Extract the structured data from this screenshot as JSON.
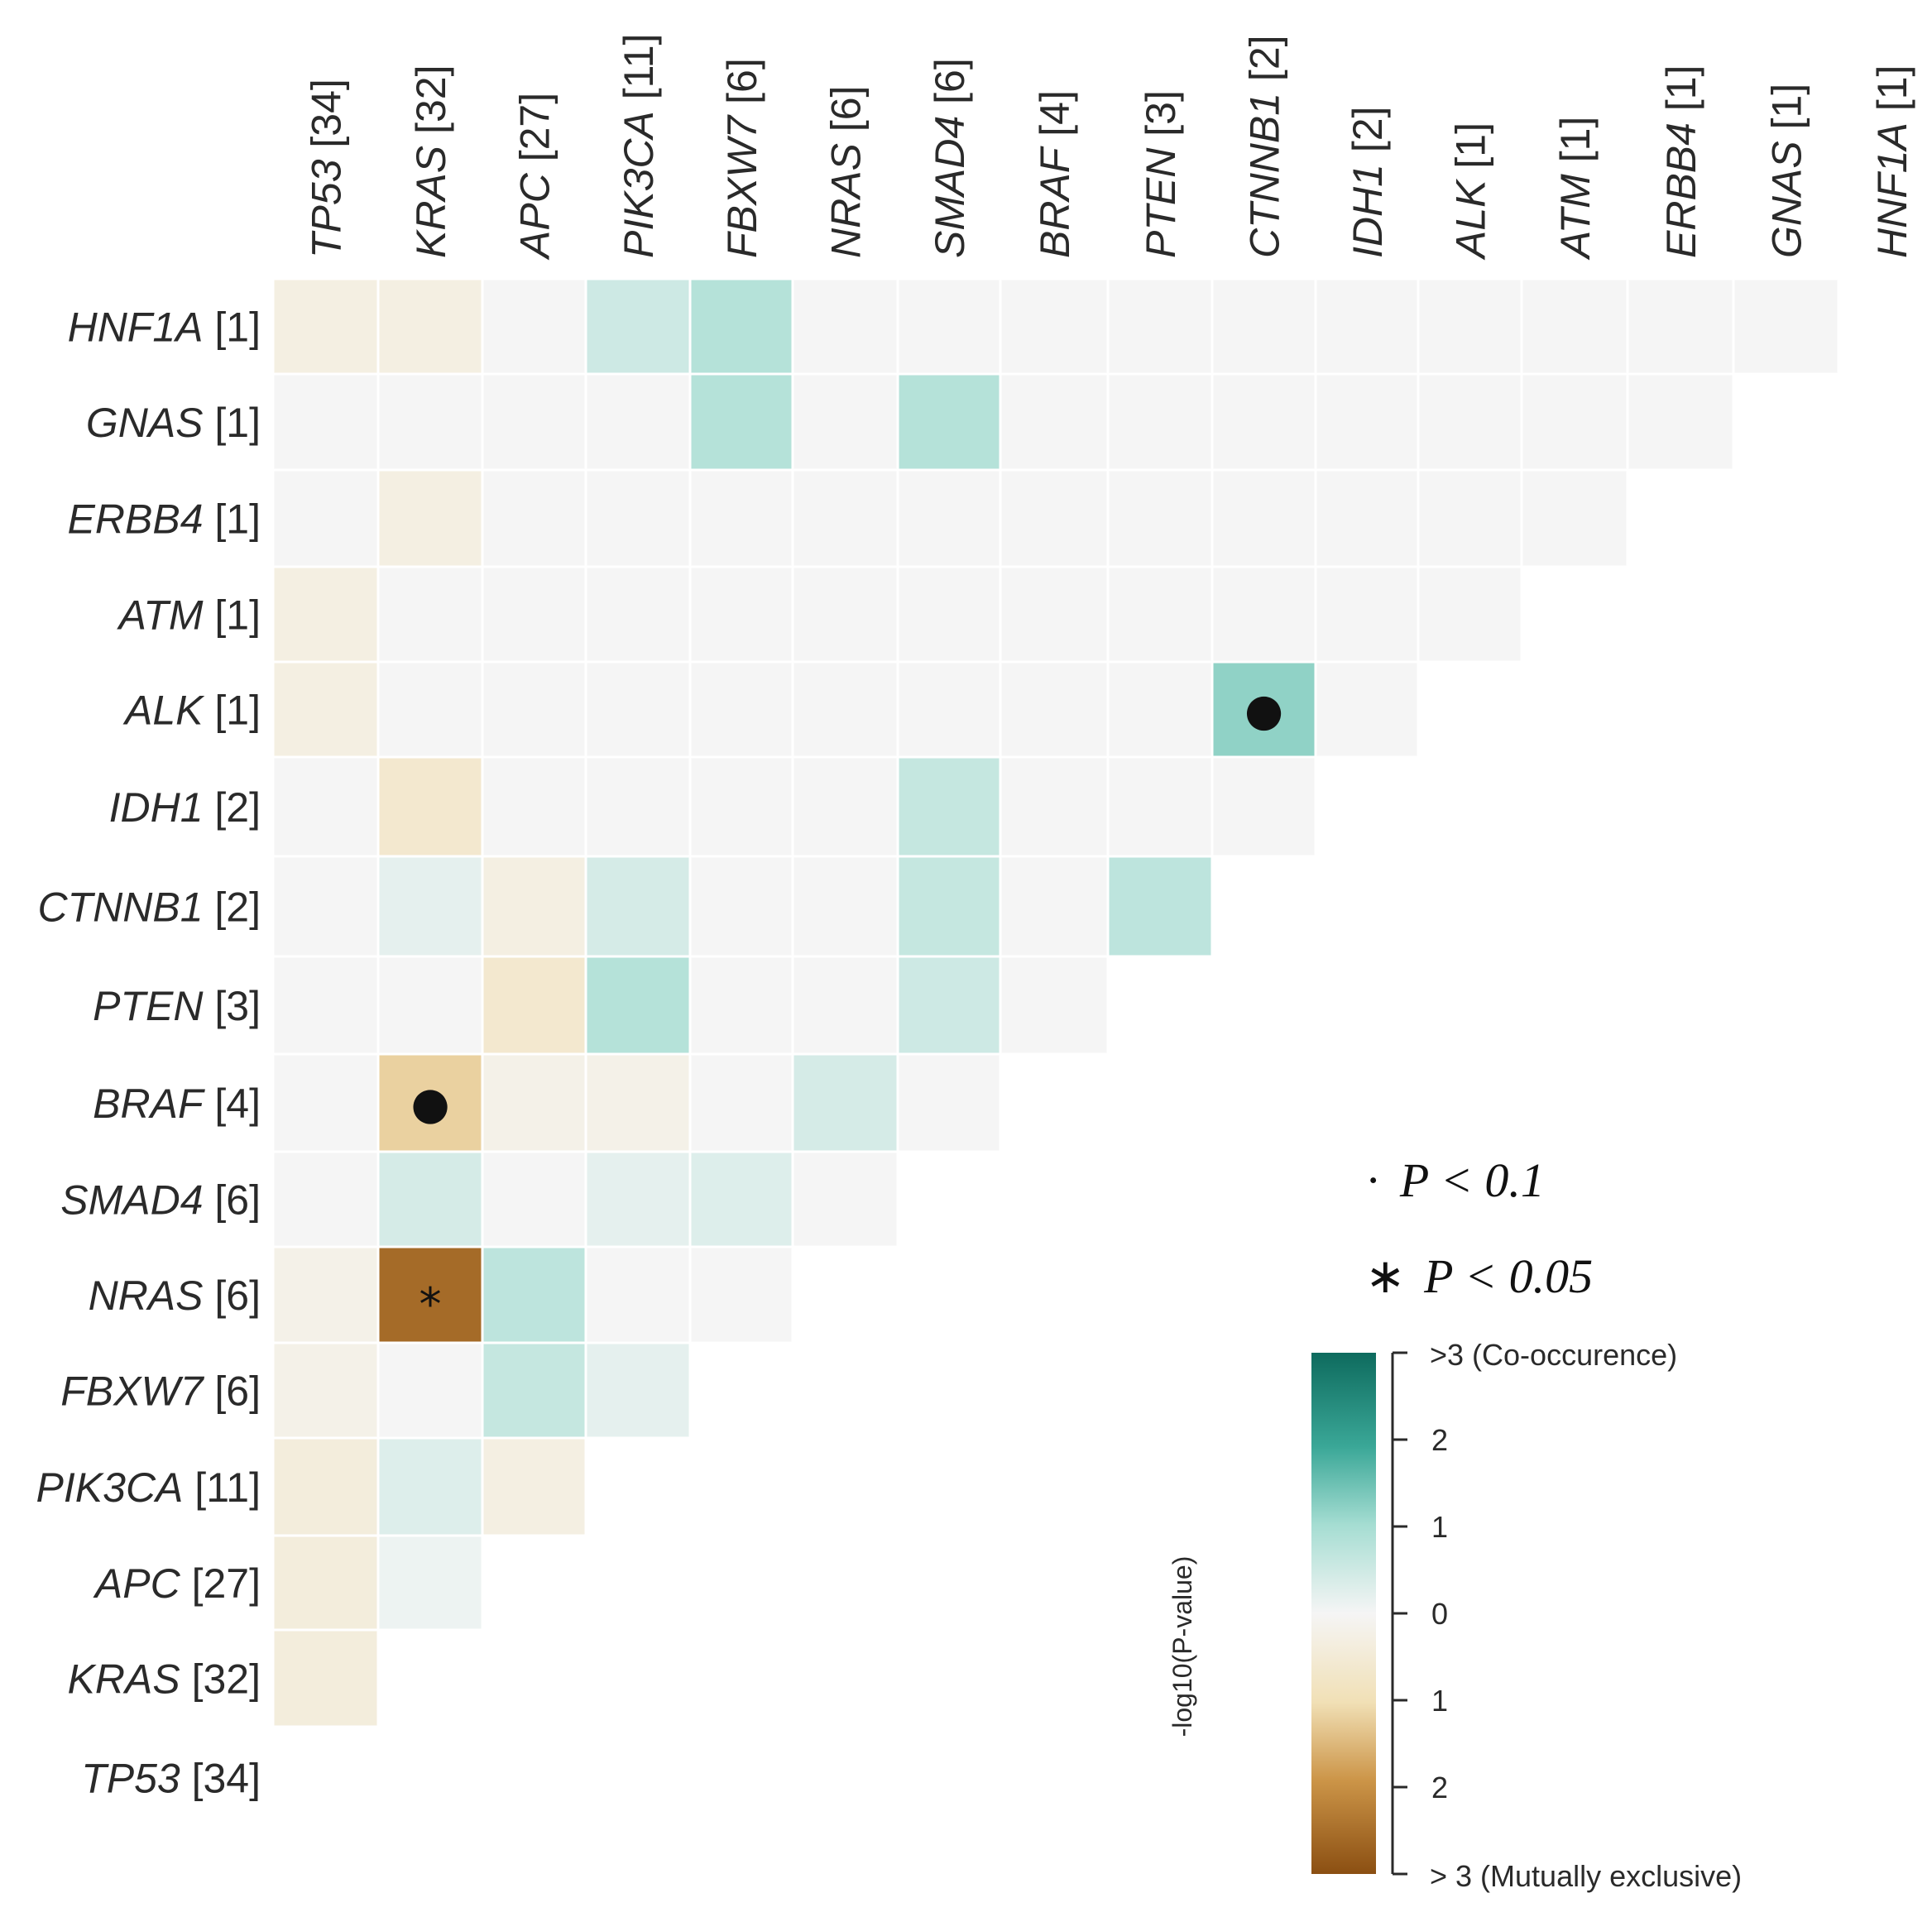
{
  "chart_data": {
    "type": "heatmap",
    "title": "",
    "genes": [
      "TP53",
      "KRAS",
      "APC",
      "PIK3CA",
      "FBXW7",
      "NRAS",
      "SMAD4",
      "BRAF",
      "PTEN",
      "CTNNB1",
      "IDH1",
      "ALK",
      "ATM",
      "ERBB4",
      "GNAS",
      "HNF1A"
    ],
    "counts": [
      34,
      32,
      27,
      11,
      6,
      6,
      6,
      4,
      3,
      2,
      2,
      1,
      1,
      1,
      1,
      1
    ],
    "columns": [
      "TP53 [34]",
      "KRAS [32]",
      "APC [27]",
      "PIK3CA [11]",
      "FBXW7 [6]",
      "NRAS [6]",
      "SMAD4 [6]",
      "BRAF [4]",
      "PTEN [3]",
      "CTNNB1 [2]",
      "IDH1 [2]",
      "ALK [1]",
      "ATM [1]",
      "ERBB4 [1]",
      "GNAS [1]",
      "HNF1A [1]"
    ],
    "rows": [
      "HNF1A [1]",
      "GNAS [1]",
      "ERBB4 [1]",
      "ATM [1]",
      "ALK [1]",
      "IDH1 [2]",
      "CTNNB1 [2]",
      "PTEN [3]",
      "BRAF [4]",
      "SMAD4 [6]",
      "NRAS [6]",
      "FBXW7 [6]",
      "PIK3CA [11]",
      "APC [27]",
      "KRAS [32]",
      "TP53 [34]"
    ],
    "value_meaning": "signed -log10(P-value): positive = co-occurrence, negative = mutual exclusivity",
    "values": [
      [
        -0.3,
        -0.3,
        0,
        0.5,
        0.8,
        0,
        0,
        0,
        0,
        0,
        0,
        0,
        0,
        0,
        0
      ],
      [
        0,
        0,
        0,
        0,
        0.8,
        0,
        0.8,
        0,
        0,
        0,
        0,
        0,
        0,
        0
      ],
      [
        0,
        -0.3,
        0,
        0,
        0,
        0,
        0,
        0,
        0,
        0,
        0,
        0,
        0
      ],
      [
        -0.3,
        0,
        0,
        0,
        0,
        0,
        0,
        0,
        0,
        0,
        0,
        0
      ],
      [
        -0.3,
        0,
        0,
        0,
        0,
        0,
        0,
        0,
        0,
        1.2,
        0
      ],
      [
        0,
        -0.6,
        0,
        0,
        0,
        0,
        0.6,
        0,
        0,
        0
      ],
      [
        0,
        0.2,
        -0.3,
        0.4,
        0,
        0,
        0.6,
        0,
        0.7
      ],
      [
        0,
        0,
        -0.6,
        0.8,
        0,
        0,
        0.5,
        0
      ],
      [
        0,
        -1.2,
        -0.2,
        -0.2,
        0,
        0.4,
        0
      ],
      [
        0,
        0.4,
        0,
        0.2,
        0.3,
        0
      ],
      [
        -0.2,
        -2.6,
        0.7,
        0,
        0
      ],
      [
        -0.2,
        0,
        0.6,
        0.2
      ],
      [
        -0.4,
        0.3,
        -0.3
      ],
      [
        -0.4,
        0.1
      ],
      [
        -0.4
      ]
    ],
    "marks": [
      {
        "row": "ALK [1]",
        "col": "CTNNB1 [2]",
        "symbol": "●",
        "meaning": "P < 0.1"
      },
      {
        "row": "BRAF [4]",
        "col": "KRAS [32]",
        "symbol": "●",
        "meaning": "P < 0.1"
      },
      {
        "row": "NRAS [6]",
        "col": "KRAS [32]",
        "symbol": "*",
        "meaning": "P < 0.05"
      }
    ],
    "significance_legend": [
      {
        "symbol": "·",
        "label": "P < 0.1"
      },
      {
        "symbol": "∗",
        "label": "P < 0.05"
      }
    ],
    "colorbar": {
      "title": "-log10(P-value)",
      "top_label": ">3 (Co-occurence)",
      "bottom_label": "> 3 (Mutually exclusive)",
      "ticks": [
        "2",
        "1",
        "0",
        "1",
        "2"
      ],
      "range": [
        -3,
        3
      ],
      "colors": {
        "co_occurrence_max": "#0e6b5e",
        "neutral": "#f5f5f5",
        "mutual_exclusive_max": "#8b4f12"
      }
    }
  }
}
